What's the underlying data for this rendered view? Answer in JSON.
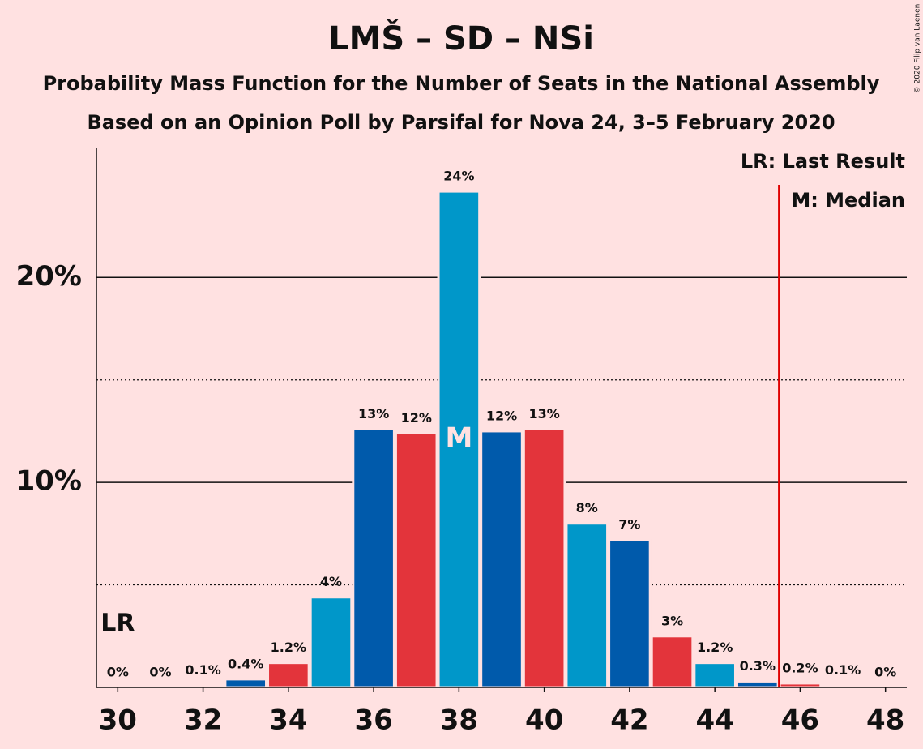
{
  "chart_data": {
    "type": "bar",
    "title": "LMŠ – SD – NSi",
    "subtitle": "Probability Mass Function for the Number of Seats in the National Assembly",
    "subtitle2": "Based on an Opinion Poll by Parsifal for Nova 24, 3–5 February 2020",
    "copyright": "© 2020 Filip van Laenen",
    "x": [
      30,
      31,
      32,
      33,
      34,
      35,
      36,
      37,
      38,
      39,
      40,
      41,
      42,
      43,
      44,
      45,
      46,
      47,
      48
    ],
    "values": [
      0,
      0,
      0.1,
      0.4,
      1.2,
      4.4,
      12.6,
      12.4,
      24.2,
      12.5,
      12.6,
      8.0,
      7.2,
      2.5,
      1.2,
      0.3,
      0.2,
      0.1,
      0
    ],
    "value_labels": [
      "0%",
      "0%",
      "0.1%",
      "0.4%",
      "1.2%",
      "4%",
      "13%",
      "12%",
      "24%",
      "12%",
      "13%",
      "8%",
      "7%",
      "3%",
      "1.2%",
      "0.3%",
      "0.2%",
      "0.1%",
      "0%"
    ],
    "colors": [
      "#005aab",
      "#e3343b",
      "#0097c9",
      "#005aab",
      "#e3343b",
      "#0097c9",
      "#005aab",
      "#e3343b",
      "#0097c9",
      "#005aab",
      "#e3343b",
      "#0097c9",
      "#005aab",
      "#e3343b",
      "#0097c9",
      "#005aab",
      "#e3343b",
      "#0097c9",
      "#005aab"
    ],
    "xlim": [
      29.5,
      48.5
    ],
    "xticks": [
      30,
      32,
      34,
      36,
      38,
      40,
      42,
      44,
      46,
      48
    ],
    "ylim": [
      0,
      26.3
    ],
    "yticks": [
      {
        "value": 10,
        "label": "10%"
      },
      {
        "value": 20,
        "label": "20%"
      }
    ],
    "minor_yticks": [
      5,
      15
    ],
    "last_result": {
      "x": 45.5,
      "label": "LR",
      "color": "#e00000"
    },
    "median": {
      "x": 38,
      "label": "M"
    },
    "legend": [
      "LR: Last Result",
      "M: Median"
    ]
  }
}
